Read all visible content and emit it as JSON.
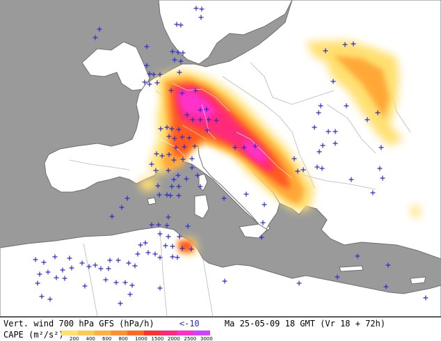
{
  "caption": {
    "title": "Vert. wind 700 hPa GFS (hPa/h)",
    "wind_threshold": "<-10",
    "run_info": "Ma 25-05-09 18 GMT (Vr 18 + 72h)",
    "cape_label": "CAPE (m²/s²)"
  },
  "cape_scale": {
    "labels": [
      "200",
      "400",
      "600",
      "800",
      "1000",
      "1500",
      "2000",
      "2500",
      "3000"
    ],
    "colors": [
      "#ffe070",
      "#ffca50",
      "#ffb040",
      "#ff9030",
      "#ff6a20",
      "#ff3030",
      "#ff2a78",
      "#ff30c8",
      "#d040ff"
    ]
  },
  "colors": {
    "land": "#ffffff",
    "sea": "#9a9a9a",
    "coastline": "#8a8a8a",
    "cross_marker": "#2a2ad0"
  },
  "legend_markers": {
    "cross": "plus-icon"
  }
}
